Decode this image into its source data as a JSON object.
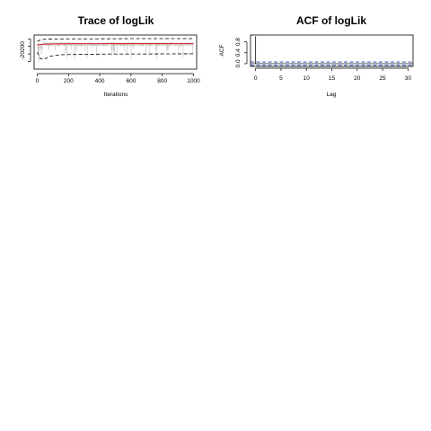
{
  "chart_data": [
    {
      "type": "line",
      "title": "Trace of logLik",
      "xlabel": "Iterations",
      "ylabel": "",
      "xlim": [
        -20,
        1020
      ],
      "ylim": [
        -27000,
        -18000
      ],
      "x_ticks": [
        0,
        200,
        400,
        600,
        800,
        1000
      ],
      "y_ticks": [
        -20200
      ],
      "y_tick_labels": [
        "-20200"
      ],
      "series": [
        {
          "role": "trace",
          "color": "#c0c0c0",
          "n": 1000,
          "center": -20200,
          "spread": 1800,
          "min": -24500
        },
        {
          "role": "running-mean",
          "color": "#d62728",
          "x": [
            0,
            20,
            50,
            100,
            200,
            400,
            600,
            800,
            1000
          ],
          "y": [
            -20600,
            -20500,
            -20400,
            -20350,
            -20300,
            -20280,
            -20270,
            -20260,
            -20250
          ]
        },
        {
          "role": "upper-quantile",
          "color": "#000000",
          "dashed": true,
          "x": [
            0,
            20,
            50,
            100,
            200,
            400,
            600,
            800,
            1000
          ],
          "y": [
            -19700,
            -19300,
            -19100,
            -19050,
            -19000,
            -19000,
            -18950,
            -18950,
            -18950
          ]
        },
        {
          "role": "lower-quantile",
          "color": "#000000",
          "dashed": true,
          "x": [
            0,
            20,
            40,
            80,
            150,
            300,
            500,
            700,
            1000
          ],
          "y": [
            -22500,
            -24200,
            -24500,
            -23600,
            -23200,
            -23100,
            -23000,
            -23000,
            -22950
          ]
        }
      ]
    },
    {
      "type": "bar",
      "title": "ACF of logLik",
      "xlabel": "Lag",
      "ylabel": "ACF",
      "xlim": [
        -1,
        31
      ],
      "ylim": [
        -0.1,
        1.05
      ],
      "x_ticks": [
        0,
        5,
        10,
        15,
        20,
        25,
        30
      ],
      "y_ticks": [
        0.0,
        0.4,
        0.8
      ],
      "y_tick_labels": [
        "0.0",
        "0.4",
        "0.8"
      ],
      "lags": [
        0,
        1,
        2,
        3,
        4,
        5,
        6,
        7,
        8,
        9,
        10,
        11,
        12,
        13,
        14,
        15,
        16,
        17,
        18,
        19,
        20,
        21,
        22,
        23,
        24,
        25,
        26,
        27,
        28,
        29,
        30,
        31
      ],
      "values": [
        1.0,
        0.02,
        0.01,
        -0.01,
        0.02,
        0.0,
        -0.01,
        0.01,
        0.0,
        0.01,
        -0.01,
        0.0,
        0.01,
        -0.01,
        0.0,
        0.01,
        0.0,
        -0.01,
        0.01,
        0.0,
        0.0,
        0.01,
        -0.01,
        0.0,
        0.01,
        0.0,
        -0.01,
        0.0,
        0.01,
        0.0,
        0.0,
        0.01
      ],
      "confidence_band": 0.062,
      "band_color": "#1f3fbf"
    }
  ]
}
